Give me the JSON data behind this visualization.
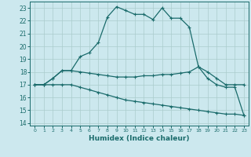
{
  "xlabel": "Humidex (Indice chaleur)",
  "xlim": [
    -0.5,
    23.5
  ],
  "ylim": [
    13.8,
    23.5
  ],
  "xticks": [
    0,
    1,
    2,
    3,
    4,
    5,
    6,
    7,
    8,
    9,
    10,
    11,
    12,
    13,
    14,
    15,
    16,
    17,
    18,
    19,
    20,
    21,
    22,
    23
  ],
  "yticks": [
    14,
    15,
    16,
    17,
    18,
    19,
    20,
    21,
    22,
    23
  ],
  "bg_color": "#cce8ee",
  "grid_color": "#aacccc",
  "line_color": "#1a6b6b",
  "line1_x": [
    0,
    1,
    2,
    3,
    4,
    5,
    6,
    7,
    8,
    9,
    10,
    11,
    12,
    13,
    14,
    15,
    16,
    17,
    18,
    19,
    20,
    21,
    22,
    23
  ],
  "line1_y": [
    17.0,
    17.0,
    17.5,
    18.1,
    18.1,
    19.2,
    19.5,
    20.3,
    22.3,
    23.1,
    22.8,
    22.5,
    22.5,
    22.1,
    23.0,
    22.2,
    22.2,
    21.5,
    18.4,
    17.5,
    17.0,
    16.8,
    16.8,
    14.6
  ],
  "line2_x": [
    0,
    1,
    2,
    3,
    4,
    5,
    6,
    7,
    8,
    9,
    10,
    11,
    12,
    13,
    14,
    15,
    16,
    17,
    18,
    19,
    20,
    21,
    22,
    23
  ],
  "line2_y": [
    17.0,
    17.0,
    17.5,
    18.1,
    18.1,
    18.0,
    17.9,
    17.8,
    17.7,
    17.6,
    17.6,
    17.6,
    17.7,
    17.7,
    17.8,
    17.8,
    17.9,
    18.0,
    18.4,
    18.0,
    17.5,
    17.0,
    17.0,
    17.0
  ],
  "line3_x": [
    0,
    1,
    2,
    3,
    4,
    5,
    6,
    7,
    8,
    9,
    10,
    11,
    12,
    13,
    14,
    15,
    16,
    17,
    18,
    19,
    20,
    21,
    22,
    23
  ],
  "line3_y": [
    17.0,
    17.0,
    17.0,
    17.0,
    17.0,
    16.8,
    16.6,
    16.4,
    16.2,
    16.0,
    15.8,
    15.7,
    15.6,
    15.5,
    15.4,
    15.3,
    15.2,
    15.1,
    15.0,
    14.9,
    14.8,
    14.7,
    14.7,
    14.6
  ]
}
